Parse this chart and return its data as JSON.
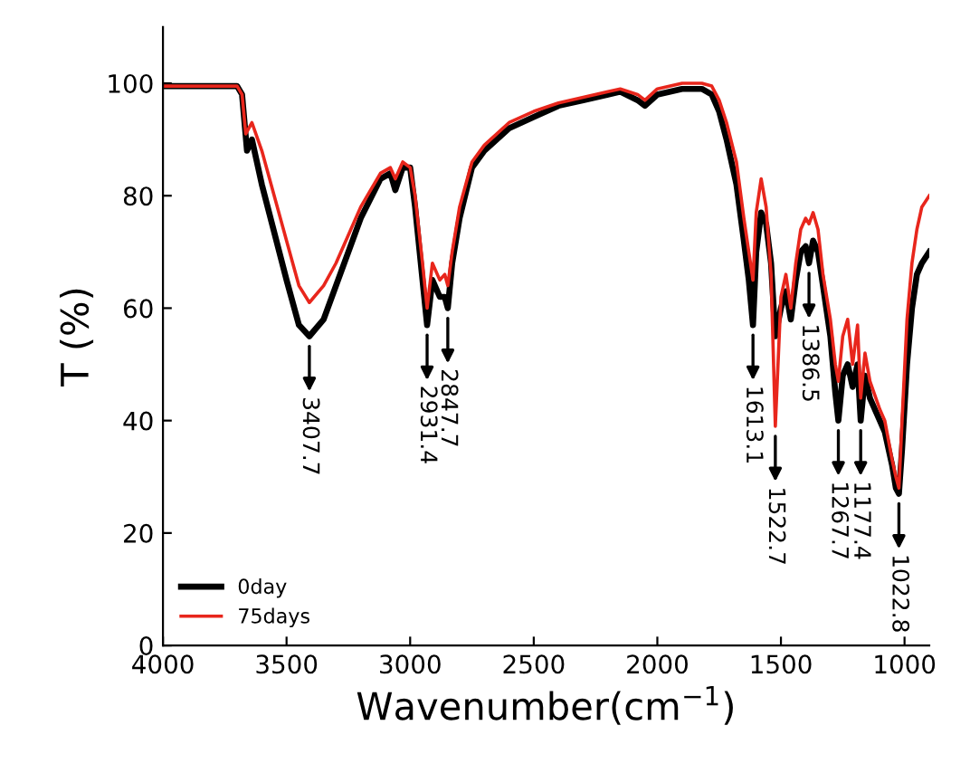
{
  "chart_data": {
    "type": "line",
    "xlabel": "Wavenumber(cm$^{−1}$)",
    "ylabel": "T (%)",
    "xlim": [
      4000,
      900
    ],
    "ylim": [
      0,
      110
    ],
    "xticks": [
      4000,
      3500,
      3000,
      2500,
      2000,
      1500,
      1000
    ],
    "yticks": [
      0,
      20,
      40,
      60,
      80,
      100
    ],
    "grid": false,
    "legend": "bottom left",
    "marker": "none",
    "line_style": "solid",
    "series": [
      {
        "name": "0day",
        "color": "#000000",
        "x": [
          4000,
          3700,
          3680,
          3660,
          3640,
          3600,
          3500,
          3450,
          3407.7,
          3350,
          3300,
          3250,
          3200,
          3120,
          3080,
          3060,
          3030,
          3000,
          2980,
          2950,
          2931.4,
          2910,
          2880,
          2860,
          2847.7,
          2830,
          2800,
          2750,
          2700,
          2600,
          2500,
          2400,
          2300,
          2200,
          2150,
          2080,
          2050,
          2000,
          1900,
          1820,
          1780,
          1750,
          1720,
          1680,
          1650,
          1630,
          1613.1,
          1600,
          1580,
          1560,
          1540,
          1522.7,
          1500,
          1480,
          1460,
          1440,
          1420,
          1400,
          1386.5,
          1370,
          1350,
          1330,
          1300,
          1280,
          1267.7,
          1250,
          1230,
          1210,
          1190,
          1177.4,
          1160,
          1140,
          1100,
          1080,
          1050,
          1035,
          1022.8,
          1010,
          990,
          970,
          950,
          930,
          900
        ],
        "values": [
          99.5,
          99.5,
          98,
          88,
          90,
          82,
          65,
          57,
          55,
          58,
          64,
          70,
          76,
          83,
          84,
          81,
          85,
          85,
          78,
          65,
          57,
          65,
          62,
          62,
          60,
          68,
          76,
          85,
          88,
          92,
          94,
          96,
          97,
          98,
          98.5,
          97,
          96,
          98,
          99,
          99,
          98,
          95,
          90,
          82,
          72,
          65,
          57,
          70,
          77,
          75,
          68,
          55,
          60,
          63,
          58,
          65,
          70,
          71,
          68,
          72,
          70,
          64,
          55,
          45,
          40,
          48,
          50,
          46,
          50,
          40,
          48,
          44,
          40,
          38,
          32,
          28,
          27,
          35,
          50,
          60,
          66,
          68,
          70
        ]
      },
      {
        "name": "75days",
        "color": "#e8261c",
        "x": [
          4000,
          3700,
          3680,
          3665,
          3640,
          3600,
          3500,
          3450,
          3407.7,
          3350,
          3300,
          3250,
          3200,
          3120,
          3080,
          3060,
          3030,
          3000,
          2980,
          2950,
          2931.4,
          2910,
          2880,
          2860,
          2847.7,
          2830,
          2800,
          2750,
          2700,
          2600,
          2500,
          2400,
          2300,
          2200,
          2150,
          2080,
          2050,
          2000,
          1900,
          1820,
          1780,
          1750,
          1720,
          1680,
          1650,
          1630,
          1613.1,
          1600,
          1580,
          1560,
          1540,
          1522.7,
          1500,
          1480,
          1460,
          1440,
          1420,
          1400,
          1386.5,
          1370,
          1350,
          1330,
          1300,
          1280,
          1267.7,
          1250,
          1230,
          1210,
          1190,
          1177.4,
          1160,
          1140,
          1100,
          1080,
          1050,
          1035,
          1022.8,
          1010,
          990,
          970,
          950,
          930,
          900
        ],
        "values": [
          99.5,
          99.5,
          98,
          91,
          93,
          88,
          72,
          64,
          61,
          64,
          68,
          73,
          78,
          84,
          85,
          83,
          86,
          85,
          80,
          68,
          60,
          68,
          65,
          66,
          64,
          70,
          78,
          86,
          89,
          93,
          95,
          96.5,
          97.5,
          98.5,
          99,
          98,
          97,
          99,
          100,
          100,
          99.5,
          97,
          93,
          86,
          76,
          70,
          65,
          77,
          83,
          78,
          66,
          39,
          62,
          66,
          60,
          68,
          74,
          76,
          75,
          77,
          74,
          66,
          58,
          50,
          47,
          55,
          58,
          50,
          57,
          44,
          52,
          47,
          42,
          40,
          33,
          30,
          28,
          40,
          58,
          68,
          74,
          78,
          80
        ]
      }
    ],
    "annotations": [
      {
        "text": "3407.7",
        "x": 3407.7,
        "y": 55
      },
      {
        "text": "2931.4",
        "x": 2931.4,
        "y": 57
      },
      {
        "text": "2847.7",
        "x": 2847.7,
        "y": 60
      },
      {
        "text": "1613.1",
        "x": 1613.1,
        "y": 57
      },
      {
        "text": "1522.7",
        "x": 1522.7,
        "y": 39
      },
      {
        "text": "1386.5",
        "x": 1386.5,
        "y": 68
      },
      {
        "text": "1267.7",
        "x": 1267.7,
        "y": 40
      },
      {
        "text": "1177.4",
        "x": 1177.4,
        "y": 40
      },
      {
        "text": "1022.8",
        "x": 1022.8,
        "y": 27
      }
    ]
  }
}
